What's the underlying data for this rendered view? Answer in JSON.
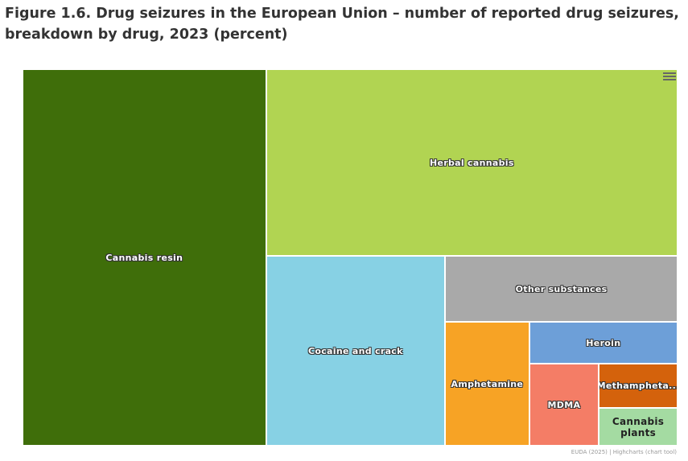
{
  "title": "Figure 1.6. Drug seizures in the European Union – number of reported drug seizures, breakdown by drug, 2023 (percent)",
  "credit": "EUDA (2025) | Highcharts (chart tool)",
  "menu_icon": "hamburger-menu-icon",
  "chart_data": {
    "type": "treemap",
    "title": "Drug seizures in the European Union – number of reported drug seizures, breakdown by drug, 2023 (percent)",
    "unit": "percent (estimated from area)",
    "series": [
      {
        "name": "Cannabis resin",
        "value": 37.0,
        "color": "#3f6e0a",
        "dark": false
      },
      {
        "name": "Herbal cannabis",
        "value": 31.0,
        "color": "#b1d452",
        "dark": false
      },
      {
        "name": "Cocaine and crack",
        "value": 13.7,
        "color": "#87d1e4",
        "dark": false
      },
      {
        "name": "Other substances",
        "value": 6.2,
        "color": "#a9a9a9",
        "dark": false
      },
      {
        "name": "Amphetamine",
        "value": 4.2,
        "color": "#f7a325",
        "dark": false
      },
      {
        "name": "Heroin",
        "value": 2.5,
        "color": "#6d9fd8",
        "dark": false
      },
      {
        "name": "MDMA",
        "value": 2.3,
        "color": "#f47d66",
        "dark": false
      },
      {
        "name": "Methamphetamine",
        "display": "Methampheta...",
        "value": 1.4,
        "color": "#d4620c",
        "dark": false
      },
      {
        "name": "Cannabis plants",
        "value": 1.2,
        "color": "#a4dba2",
        "dark": true
      }
    ]
  }
}
